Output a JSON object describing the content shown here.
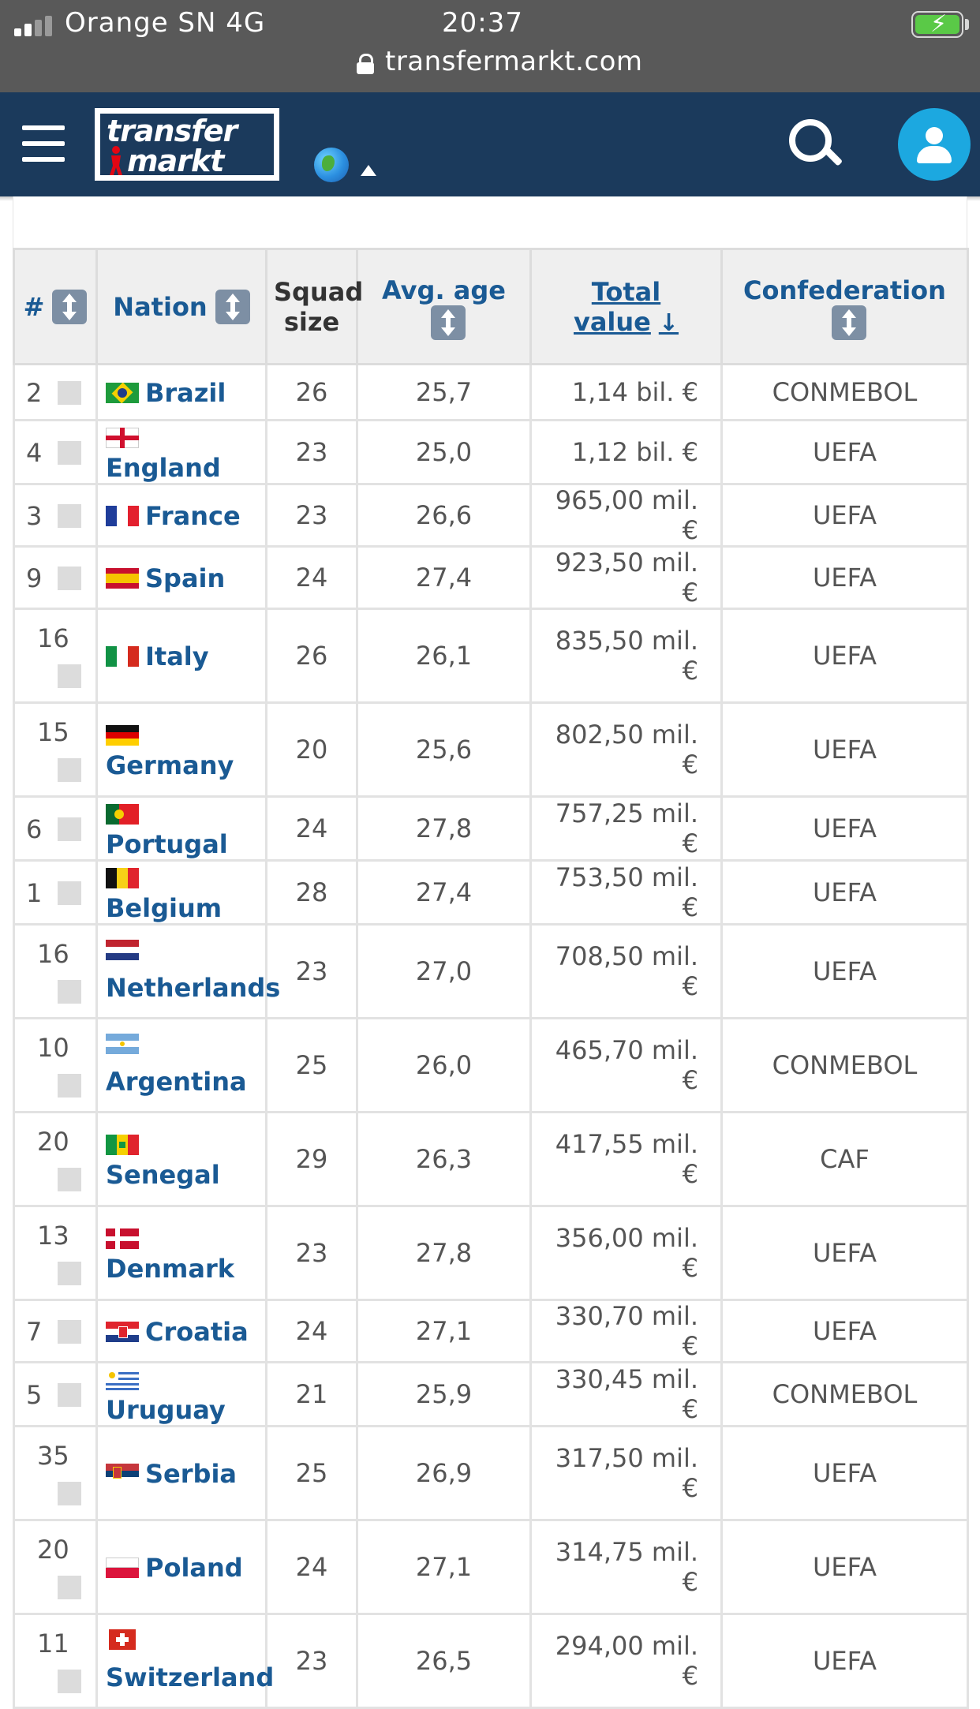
{
  "status_bar": {
    "carrier": "Orange SN 4G",
    "time": "20:37",
    "url": "transfermarkt.com",
    "battery_color": "#5ac947"
  },
  "header": {
    "logo_top": "transfer",
    "logo_bottom": "markt",
    "background": "#1b3a5c",
    "icons": [
      "menu-icon",
      "globe-icon",
      "caret-up-icon",
      "search-icon",
      "user-icon"
    ]
  },
  "table": {
    "columns": {
      "rank": "#",
      "nation": "Nation",
      "squad_line1": "Squad",
      "squad_line2": "size",
      "avg_age": "Avg. age",
      "total_value": "Total value",
      "total_value_arrow": "↓",
      "confederation": "Confederation"
    },
    "rows": [
      {
        "rank": "2",
        "nation": "Brazil",
        "squad": "26",
        "age": "25,7",
        "value": "1,14 bil. €",
        "conf": "CONMEBOL"
      },
      {
        "rank": "4",
        "nation": "England",
        "squad": "23",
        "age": "25,0",
        "value": "1,12 bil. €",
        "conf": "UEFA"
      },
      {
        "rank": "3",
        "nation": "France",
        "squad": "23",
        "age": "26,6",
        "value": "965,00 mil. €",
        "conf": "UEFA"
      },
      {
        "rank": "9",
        "nation": "Spain",
        "squad": "24",
        "age": "27,4",
        "value": "923,50 mil. €",
        "conf": "UEFA"
      },
      {
        "rank": "16",
        "nation": "Italy",
        "squad": "26",
        "age": "26,1",
        "value": "835,50 mil. €",
        "conf": "UEFA"
      },
      {
        "rank": "15",
        "nation": "Germany",
        "squad": "20",
        "age": "25,6",
        "value": "802,50 mil. €",
        "conf": "UEFA"
      },
      {
        "rank": "6",
        "nation": "Portugal",
        "squad": "24",
        "age": "27,8",
        "value": "757,25 mil. €",
        "conf": "UEFA"
      },
      {
        "rank": "1",
        "nation": "Belgium",
        "squad": "28",
        "age": "27,4",
        "value": "753,50 mil. €",
        "conf": "UEFA"
      },
      {
        "rank": "16",
        "nation": "Netherlands",
        "squad": "23",
        "age": "27,0",
        "value": "708,50 mil. €",
        "conf": "UEFA"
      },
      {
        "rank": "10",
        "nation": "Argentina",
        "squad": "25",
        "age": "26,0",
        "value": "465,70 mil. €",
        "conf": "CONMEBOL"
      },
      {
        "rank": "20",
        "nation": "Senegal",
        "squad": "29",
        "age": "26,3",
        "value": "417,55 mil. €",
        "conf": "CAF"
      },
      {
        "rank": "13",
        "nation": "Denmark",
        "squad": "23",
        "age": "27,8",
        "value": "356,00 mil. €",
        "conf": "UEFA"
      },
      {
        "rank": "7",
        "nation": "Croatia",
        "squad": "24",
        "age": "27,1",
        "value": "330,70 mil. €",
        "conf": "UEFA"
      },
      {
        "rank": "5",
        "nation": "Uruguay",
        "squad": "21",
        "age": "25,9",
        "value": "330,45 mil. €",
        "conf": "CONMEBOL"
      },
      {
        "rank": "35",
        "nation": "Serbia",
        "squad": "25",
        "age": "26,9",
        "value": "317,50 mil. €",
        "conf": "UEFA"
      },
      {
        "rank": "20",
        "nation": "Poland",
        "squad": "24",
        "age": "27,1",
        "value": "314,75 mil. €",
        "conf": "UEFA"
      },
      {
        "rank": "11",
        "nation": "Switzerland",
        "squad": "23",
        "age": "26,5",
        "value": "294,00 mil. €",
        "conf": "UEFA"
      }
    ]
  }
}
